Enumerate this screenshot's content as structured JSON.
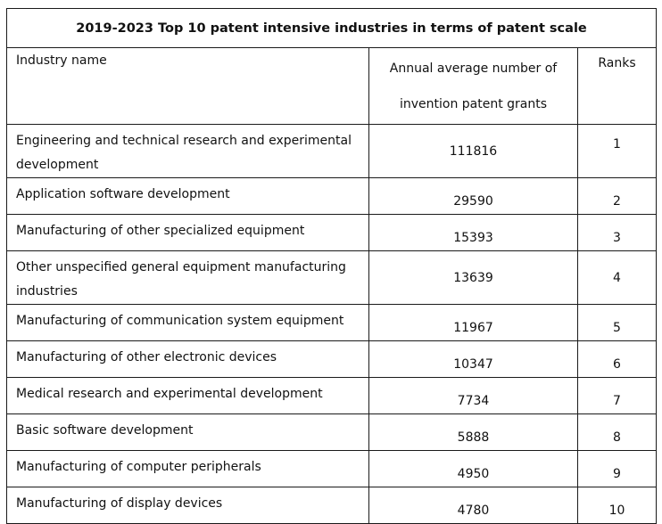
{
  "table": {
    "title": "2019-2023 Top 10 patent intensive industries in terms of patent scale",
    "headers": {
      "industry": "Industry name",
      "count": "Annual average number of invention patent grants",
      "rank": "Ranks"
    },
    "rows": [
      {
        "industry": "Engineering and technical research and experimental development",
        "count": "111816",
        "rank": "1"
      },
      {
        "industry": "Application software development",
        "count": "29590",
        "rank": "2"
      },
      {
        "industry": "Manufacturing of other specialized equipment",
        "count": "15393",
        "rank": "3"
      },
      {
        "industry": "Other unspecified general equipment manufacturing industries",
        "count": "13639",
        "rank": "4"
      },
      {
        "industry": "Manufacturing of communication system equipment",
        "count": "11967",
        "rank": "5"
      },
      {
        "industry": "Manufacturing of other electronic devices",
        "count": "10347",
        "rank": "6"
      },
      {
        "industry": "Medical research and experimental development",
        "count": "7734",
        "rank": "7"
      },
      {
        "industry": "Basic software development",
        "count": "5888",
        "rank": "8"
      },
      {
        "industry": "Manufacturing of computer peripherals",
        "count": "4950",
        "rank": "9"
      },
      {
        "industry": "Manufacturing of display devices",
        "count": "4780",
        "rank": "10"
      }
    ]
  }
}
